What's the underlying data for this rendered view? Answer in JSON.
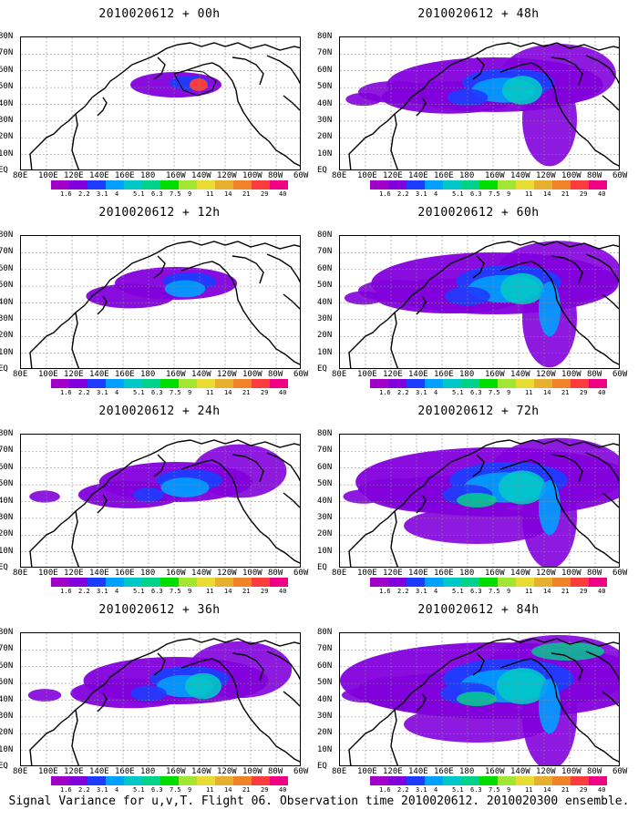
{
  "panels": [
    {
      "title": "2010020612 + 00h",
      "lead": 0
    },
    {
      "title": "2010020612 + 12h",
      "lead": 12
    },
    {
      "title": "2010020612 + 24h",
      "lead": 24
    },
    {
      "title": "2010020612 + 36h",
      "lead": 36
    },
    {
      "title": "2010020612 + 48h",
      "lead": 48
    },
    {
      "title": "2010020612 + 60h",
      "lead": 60
    },
    {
      "title": "2010020612 + 72h",
      "lead": 72
    },
    {
      "title": "2010020612 + 84h",
      "lead": 84
    }
  ],
  "lat_labels": [
    "80N",
    "70N",
    "60N",
    "50N",
    "40N",
    "30N",
    "20N",
    "10N",
    "EQ"
  ],
  "lon_labels": [
    "80E",
    "100E",
    "120E",
    "140E",
    "160E",
    "180",
    "160W",
    "140W",
    "120W",
    "100W",
    "80W",
    "60W"
  ],
  "colorbar": {
    "labels": [
      "1.6",
      "2.2",
      "3.1",
      "4",
      "5.1",
      "6.3",
      "7.5",
      "9",
      "11",
      "14",
      "21",
      "29",
      "40"
    ],
    "colors": [
      "#a000c8",
      "#8200dc",
      "#1e3cff",
      "#00a0ff",
      "#00c8c8",
      "#00d28c",
      "#00dc00",
      "#a0e632",
      "#e6dc32",
      "#e6af2d",
      "#f08228",
      "#fa3c3c",
      "#f00082"
    ]
  },
  "footer": "Signal Variance for u,v,T. Flight 06. Observation time 2010020612. 2010020300 ensemble."
}
